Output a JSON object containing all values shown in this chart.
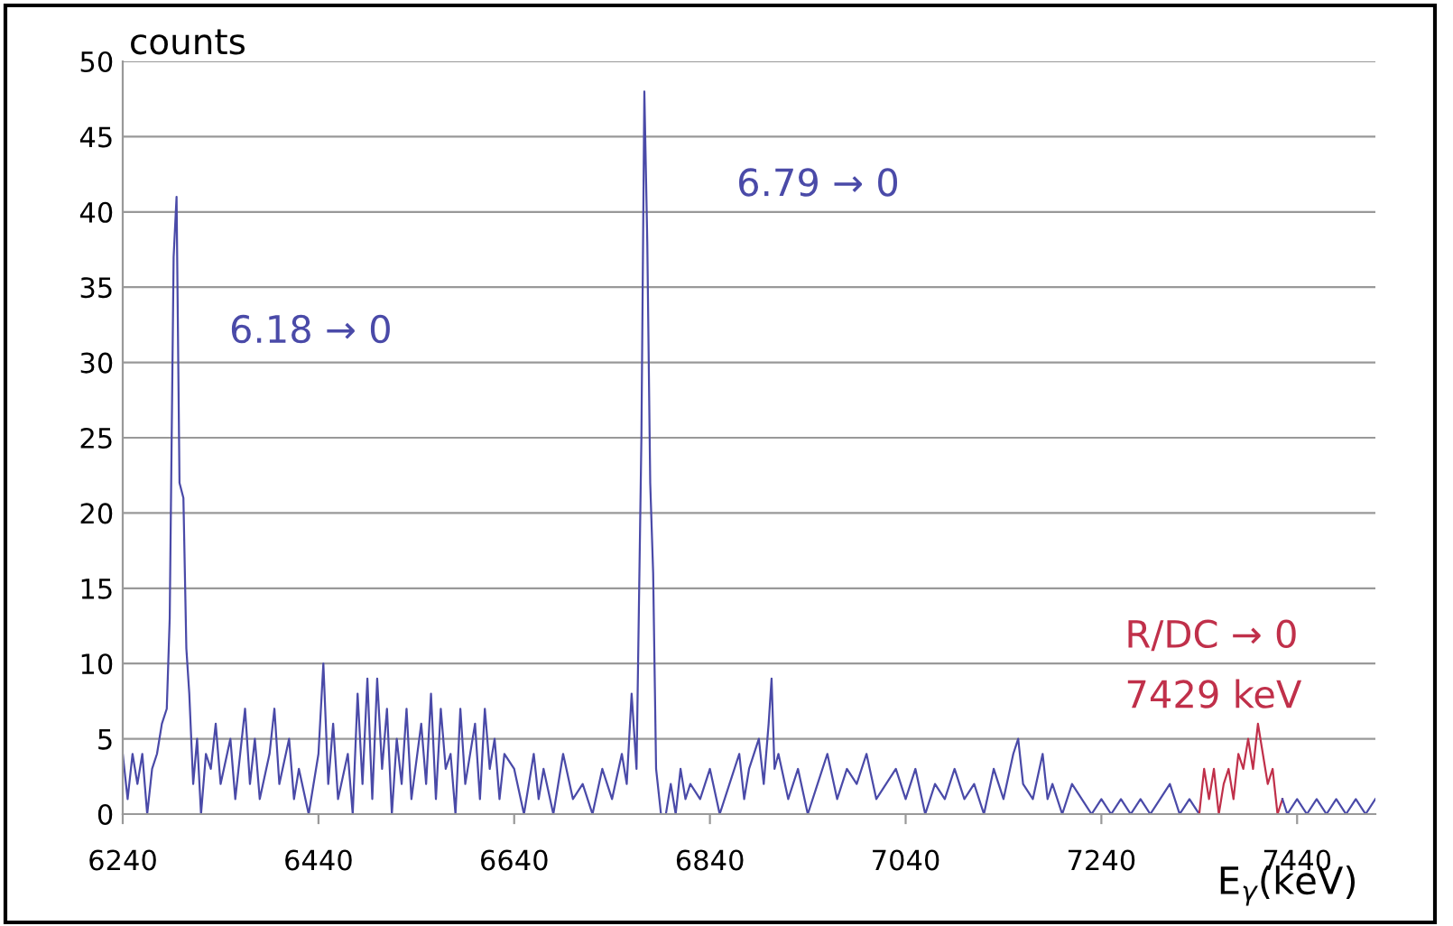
{
  "chart_data": {
    "type": "line",
    "ylabel": "counts",
    "xlabel": "E$_{γ}$(keV)",
    "xlim": [
      6240,
      7520
    ],
    "xticks": [
      6240,
      6440,
      6640,
      6840,
      7040,
      7240,
      7440
    ],
    "ylim": [
      0,
      50
    ],
    "yticks": [
      0,
      5,
      10,
      15,
      20,
      25,
      30,
      35,
      40,
      45,
      50
    ],
    "grid": "y",
    "annotations": [
      "6.18 → 0",
      "6.79 → 0",
      "R/DC → 0",
      "7429 keV"
    ],
    "series": [
      {
        "color": "#4a4aa8",
        "x": [
          6240,
          6245,
          6250,
          6255,
          6260,
          6265,
          6270,
          6275,
          6280,
          6285,
          6288,
          6292,
          6295,
          6298,
          6302,
          6305,
          6308,
          6312,
          6316,
          6320,
          6325,
          6330,
          6335,
          6340,
          6350,
          6355,
          6360,
          6365,
          6370,
          6375,
          6380,
          6390,
          6395,
          6400,
          6410,
          6415,
          6420,
          6430,
          6440,
          6445,
          6450,
          6455,
          6460,
          6470,
          6475,
          6480,
          6485,
          6490,
          6495,
          6500,
          6505,
          6510,
          6515,
          6520,
          6525,
          6530,
          6535,
          6545,
          6550,
          6555,
          6560,
          6565,
          6570,
          6575,
          6580,
          6585,
          6590,
          6600,
          6605,
          6610,
          6615,
          6620,
          6625,
          6630,
          6640,
          6650,
          6660,
          6665,
          6670,
          6680,
          6690,
          6700,
          6710,
          6720,
          6730,
          6740,
          6750,
          6755,
          6760,
          6765,
          6770,
          6773,
          6776,
          6779,
          6782,
          6785,
          6790,
          6795,
          6800,
          6805,
          6810,
          6815,
          6820,
          6830,
          6840,
          6850,
          6860,
          6870,
          6875,
          6880,
          6890,
          6895,
          6900,
          6903,
          6906,
          6910,
          6920,
          6930,
          6940,
          6950,
          6960,
          6970,
          6980,
          6990,
          7000,
          7010,
          7020,
          7030,
          7040,
          7050,
          7060,
          7070,
          7080,
          7090,
          7100,
          7110,
          7120,
          7130,
          7140,
          7150,
          7155,
          7160,
          7170,
          7180,
          7185,
          7190,
          7200,
          7210,
          7220,
          7230,
          7240,
          7250,
          7260,
          7270,
          7280,
          7290,
          7300,
          7310,
          7320,
          7330,
          7340
        ],
        "values": [
          4,
          1,
          4,
          2,
          4,
          0,
          3,
          4,
          6,
          7,
          13,
          37,
          41,
          22,
          21,
          11,
          8,
          2,
          5,
          0,
          4,
          3,
          6,
          2,
          5,
          1,
          4,
          7,
          2,
          5,
          1,
          4,
          7,
          2,
          5,
          1,
          3,
          0,
          4,
          10,
          2,
          6,
          1,
          4,
          0,
          8,
          2,
          9,
          1,
          9,
          3,
          7,
          0,
          5,
          2,
          7,
          1,
          6,
          2,
          8,
          1,
          7,
          3,
          4,
          0,
          7,
          2,
          6,
          1,
          7,
          3,
          5,
          1,
          4,
          3,
          0,
          4,
          1,
          3,
          0,
          4,
          1,
          2,
          0,
          3,
          1,
          4,
          2,
          8,
          3,
          25,
          48,
          38,
          22,
          16,
          3,
          0,
          0,
          2,
          0,
          3,
          1,
          2,
          1,
          3,
          0,
          2,
          4,
          1,
          3,
          5,
          2,
          6,
          9,
          3,
          4,
          1,
          3,
          0,
          2,
          4,
          1,
          3,
          2,
          4,
          1,
          2,
          3,
          1,
          3,
          0,
          2,
          1,
          3,
          1,
          2,
          0,
          3,
          1,
          4,
          5,
          2,
          1,
          4,
          1,
          2,
          0,
          2,
          1,
          0,
          1,
          0,
          1,
          0,
          1,
          0,
          1,
          2,
          0,
          1,
          0
        ]
      },
      {
        "color": "#c0304a",
        "x": [
          7340,
          7345,
          7350,
          7355,
          7360,
          7365,
          7370,
          7375,
          7380,
          7385,
          7390,
          7395,
          7400,
          7405,
          7410,
          7415,
          7420,
          7425
        ],
        "values": [
          0,
          3,
          1,
          3,
          0,
          2,
          3,
          1,
          4,
          3,
          5,
          3,
          6,
          4,
          2,
          3,
          0,
          1
        ]
      },
      {
        "color": "#4a4aa8",
        "x": [
          7425,
          7430,
          7440,
          7450,
          7460,
          7470,
          7480,
          7490,
          7500,
          7510,
          7520
        ],
        "values": [
          1,
          0,
          1,
          0,
          1,
          0,
          1,
          0,
          1,
          0,
          1
        ]
      }
    ]
  }
}
